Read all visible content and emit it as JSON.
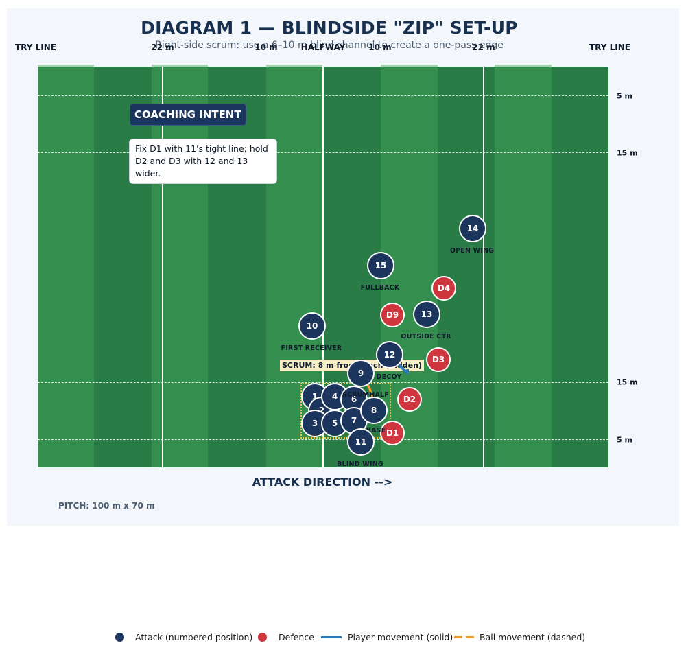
{
  "title": "DIAGRAM 1 — BLINDSIDE \"ZIP\" SET-UP",
  "subtitle": "Right-side scrum: use a 6–10 m blind channel to create a one-pass edge",
  "top_labels": {
    "try_left": "TRY LINE",
    "m22_left": "22 m",
    "m10_left": "10 m",
    "halfway": "HALFWAY",
    "m10_right": "10 m",
    "m22_right": "22 m",
    "try_right": "TRY LINE"
  },
  "side_labels": {
    "m5_top": "5 m",
    "m15_top": "15 m",
    "m15_bottom": "15 m",
    "m5_bottom": "5 m"
  },
  "coaching": {
    "heading": "COACHING INTENT",
    "text": "Fix D1 with 11's tight line; hold D2 and D3 with 12 and 13 wider."
  },
  "scrum_note": "SCRUM: 8 m from touch (hidden)",
  "attackers": [
    {
      "num": "1"
    },
    {
      "num": "2"
    },
    {
      "num": "3"
    },
    {
      "num": "4"
    },
    {
      "num": "5"
    },
    {
      "num": "6"
    },
    {
      "num": "7"
    },
    {
      "num": "8"
    },
    {
      "num": "9"
    },
    {
      "num": "10"
    },
    {
      "num": "11"
    },
    {
      "num": "12"
    },
    {
      "num": "13"
    },
    {
      "num": "14"
    },
    {
      "num": "15"
    }
  ],
  "defenders": [
    {
      "num": "D1"
    },
    {
      "num": "D2"
    },
    {
      "num": "D3"
    },
    {
      "num": "D4"
    },
    {
      "num": "D9"
    }
  ],
  "player_labels": {
    "first_receiver": "FIRST RECEIVER",
    "fullback": "FULLBACK",
    "open_wing": "OPEN WING",
    "outside_ctr": "OUTSIDE CTR",
    "decoy": "DECOY",
    "scrumhalf": "SCRUMHALF",
    "base": "BASE",
    "blind_wing": "BLIND WING"
  },
  "attack_direction": "ATTACK DIRECTION  -->",
  "pitch_dimensions": "PITCH: 100 m x 70 m",
  "legend": {
    "attack": "Attack (numbered position)",
    "defence": "Defence",
    "player_movement": "Player movement (solid)",
    "ball_movement": "Ball movement (dashed)"
  },
  "colors": {
    "attack": "#1b355c",
    "defence": "#d0363d",
    "player_movement": "#2a7ab8",
    "ball_movement": "#f0982c",
    "pitch": "#2a7c46"
  }
}
